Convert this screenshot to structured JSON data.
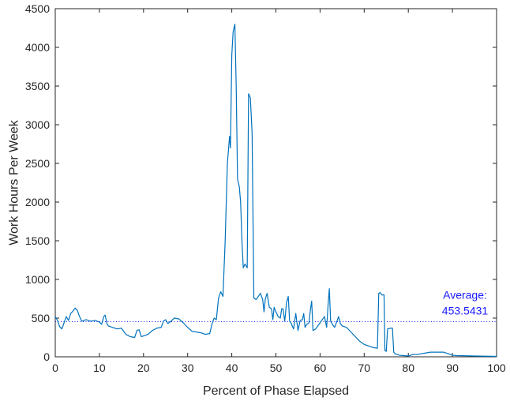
{
  "chart_data": {
    "type": "line",
    "xlabel": "Percent of Phase Elapsed",
    "ylabel": "Work Hours Per Week",
    "xlim": [
      0,
      100
    ],
    "ylim": [
      0,
      4500
    ],
    "xticks": [
      0,
      10,
      20,
      30,
      40,
      50,
      60,
      70,
      80,
      90,
      100
    ],
    "yticks": [
      0,
      500,
      1000,
      1500,
      2000,
      2500,
      3000,
      3500,
      4000,
      4500
    ],
    "grid": false,
    "series": [
      {
        "color": "#0072bd",
        "points": [
          [
            0,
            520
          ],
          [
            0.5,
            470
          ],
          [
            1,
            390
          ],
          [
            1.5,
            360
          ],
          [
            2,
            440
          ],
          [
            2.5,
            520
          ],
          [
            3,
            470
          ],
          [
            3.5,
            560
          ],
          [
            4,
            590
          ],
          [
            4.5,
            630
          ],
          [
            5,
            600
          ],
          [
            5.5,
            520
          ],
          [
            6,
            460
          ],
          [
            7,
            480
          ],
          [
            8,
            460
          ],
          [
            9,
            470
          ],
          [
            10,
            450
          ],
          [
            10.5,
            420
          ],
          [
            11,
            520
          ],
          [
            11.3,
            540
          ],
          [
            11.7,
            430
          ],
          [
            12,
            400
          ],
          [
            13,
            380
          ],
          [
            14,
            360
          ],
          [
            15,
            370
          ],
          [
            16,
            290
          ],
          [
            17,
            260
          ],
          [
            18,
            250
          ],
          [
            18.5,
            340
          ],
          [
            19,
            350
          ],
          [
            19.5,
            260
          ],
          [
            20,
            270
          ],
          [
            21,
            290
          ],
          [
            22,
            340
          ],
          [
            23,
            370
          ],
          [
            24,
            380
          ],
          [
            24.5,
            460
          ],
          [
            25,
            480
          ],
          [
            25.5,
            430
          ],
          [
            26,
            450
          ],
          [
            27,
            500
          ],
          [
            28,
            490
          ],
          [
            29,
            440
          ],
          [
            30,
            380
          ],
          [
            31,
            330
          ],
          [
            32,
            320
          ],
          [
            33,
            310
          ],
          [
            34,
            290
          ],
          [
            35,
            300
          ],
          [
            35.5,
            420
          ],
          [
            36,
            500
          ],
          [
            36.5,
            480
          ],
          [
            37,
            760
          ],
          [
            37.5,
            840
          ],
          [
            38,
            780
          ],
          [
            38.5,
            1500
          ],
          [
            39,
            2500
          ],
          [
            39.5,
            2850
          ],
          [
            39.7,
            2700
          ],
          [
            40,
            3900
          ],
          [
            40.3,
            4200
          ],
          [
            40.7,
            4300
          ],
          [
            41,
            3500
          ],
          [
            41.3,
            2300
          ],
          [
            41.7,
            2200
          ],
          [
            42,
            2000
          ],
          [
            42.3,
            1500
          ],
          [
            42.6,
            1150
          ],
          [
            43,
            1200
          ],
          [
            43.5,
            1150
          ],
          [
            43.8,
            3400
          ],
          [
            44.2,
            3350
          ],
          [
            44.6,
            2900
          ],
          [
            45,
            760
          ],
          [
            45.5,
            740
          ],
          [
            46,
            780
          ],
          [
            46.5,
            820
          ],
          [
            47,
            740
          ],
          [
            47.3,
            580
          ],
          [
            47.6,
            750
          ],
          [
            48,
            820
          ],
          [
            48.5,
            640
          ],
          [
            49,
            620
          ],
          [
            49.3,
            480
          ],
          [
            49.6,
            640
          ],
          [
            50,
            580
          ],
          [
            50.5,
            520
          ],
          [
            51,
            500
          ],
          [
            51.3,
            620
          ],
          [
            51.6,
            620
          ],
          [
            52,
            460
          ],
          [
            52.4,
            700
          ],
          [
            52.8,
            780
          ],
          [
            53.1,
            460
          ],
          [
            53.4,
            440
          ],
          [
            54,
            360
          ],
          [
            54.5,
            560
          ],
          [
            55,
            340
          ],
          [
            55.5,
            470
          ],
          [
            56,
            480
          ],
          [
            56.3,
            560
          ],
          [
            56.6,
            380
          ],
          [
            57,
            420
          ],
          [
            57.5,
            440
          ],
          [
            57.8,
            600
          ],
          [
            58.1,
            720
          ],
          [
            58.4,
            340
          ],
          [
            59,
            360
          ],
          [
            60,
            440
          ],
          [
            60.5,
            480
          ],
          [
            61,
            520
          ],
          [
            61.5,
            380
          ],
          [
            61.8,
            650
          ],
          [
            62.1,
            880
          ],
          [
            62.4,
            460
          ],
          [
            62.8,
            420
          ],
          [
            63.3,
            380
          ],
          [
            63.7,
            440
          ],
          [
            64.2,
            520
          ],
          [
            64.6,
            430
          ],
          [
            65,
            400
          ],
          [
            66,
            380
          ],
          [
            67,
            320
          ],
          [
            68,
            260
          ],
          [
            69,
            200
          ],
          [
            70,
            160
          ],
          [
            71,
            140
          ],
          [
            72,
            120
          ],
          [
            73,
            110
          ],
          [
            73.3,
            820
          ],
          [
            73.6,
            830
          ],
          [
            74,
            800
          ],
          [
            74.5,
            800
          ],
          [
            74.7,
            80
          ],
          [
            75,
            70
          ],
          [
            75.3,
            360
          ],
          [
            76,
            370
          ],
          [
            76.4,
            370
          ],
          [
            76.7,
            60
          ],
          [
            77,
            40
          ],
          [
            78,
            20
          ],
          [
            79,
            15
          ],
          [
            80,
            10
          ],
          [
            81,
            30
          ],
          [
            82,
            30
          ],
          [
            83,
            40
          ],
          [
            84,
            50
          ],
          [
            85,
            60
          ],
          [
            88,
            60
          ],
          [
            89,
            40
          ],
          [
            90,
            20
          ],
          [
            91,
            15
          ],
          [
            95,
            10
          ],
          [
            100,
            5
          ]
        ]
      }
    ],
    "average": {
      "value": 453.5431,
      "label": "Average:",
      "value_label": "453.5431",
      "color": "#1a1aff"
    }
  }
}
